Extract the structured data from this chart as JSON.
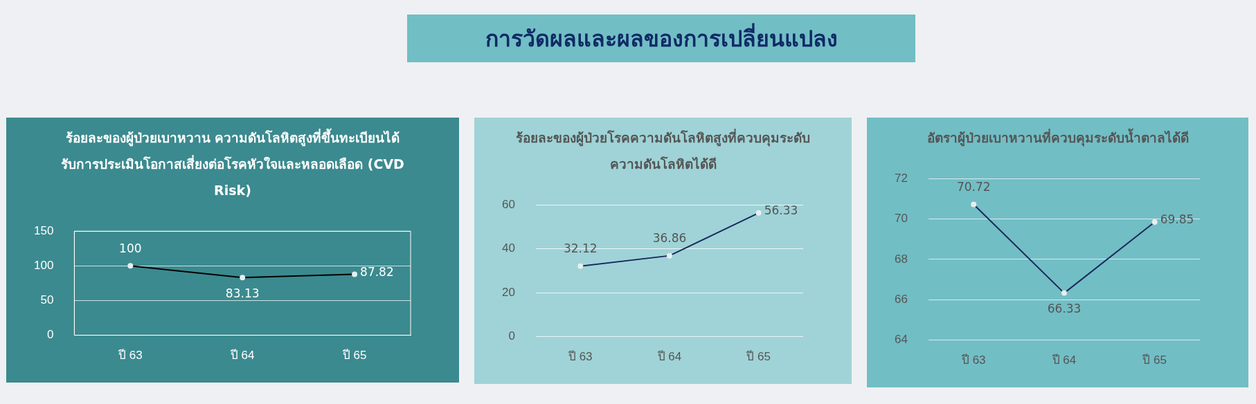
{
  "chart_data": [
    {
      "type": "other",
      "title": "การวัดผลและผลของการเปลี่ยนแปลง"
    },
    {
      "type": "line",
      "title": "ร้อยละของผู้ป่วยเบาหวาน ความดันโลหิตสูงที่ขึ้นทะเบียนได้รับการประเมินโอกาสเสี่ยงต่อโรคหัวใจและหลอดเลือด (CVD Risk)",
      "categories": [
        "ปี 63",
        "ปี 64",
        "ปี 65"
      ],
      "series": [
        {
          "color": "#000000",
          "values": [
            100,
            83.13,
            87.82
          ]
        }
      ],
      "ylim": [
        0,
        150
      ],
      "yticks": [
        0,
        50,
        100,
        150
      ],
      "grid": "y",
      "legend": false,
      "marker": "circle",
      "data_labels": true
    },
    {
      "type": "line",
      "title": "ร้อยละของผู้ป่วยโรคความดันโลหิตสูงที่ควบคุมระดับความดันโลหิตได้ดี",
      "categories": [
        "ปี 63",
        "ปี 64",
        "ปี 65"
      ],
      "series": [
        {
          "color": "#1a2a5e",
          "values": [
            32.12,
            36.86,
            56.33
          ]
        }
      ],
      "ylim": [
        0,
        60
      ],
      "yticks": [
        0,
        20,
        40,
        60
      ],
      "grid": "y",
      "legend": false,
      "marker": "circle",
      "data_labels": true
    },
    {
      "type": "line",
      "title": "อัตราผู้ป่วยเบาหวานที่ควบคุมระดับน้ำตาลได้ดี",
      "categories": [
        "ปี 63",
        "ปี 64",
        "ปี 65"
      ],
      "series": [
        {
          "color": "#1a2a5e",
          "values": [
            70.72,
            66.33,
            69.85
          ]
        }
      ],
      "ylim": [
        64,
        72
      ],
      "yticks": [
        64,
        66,
        68,
        70,
        72
      ],
      "grid": "y",
      "legend": false,
      "marker": "circle",
      "data_labels": true
    }
  ]
}
